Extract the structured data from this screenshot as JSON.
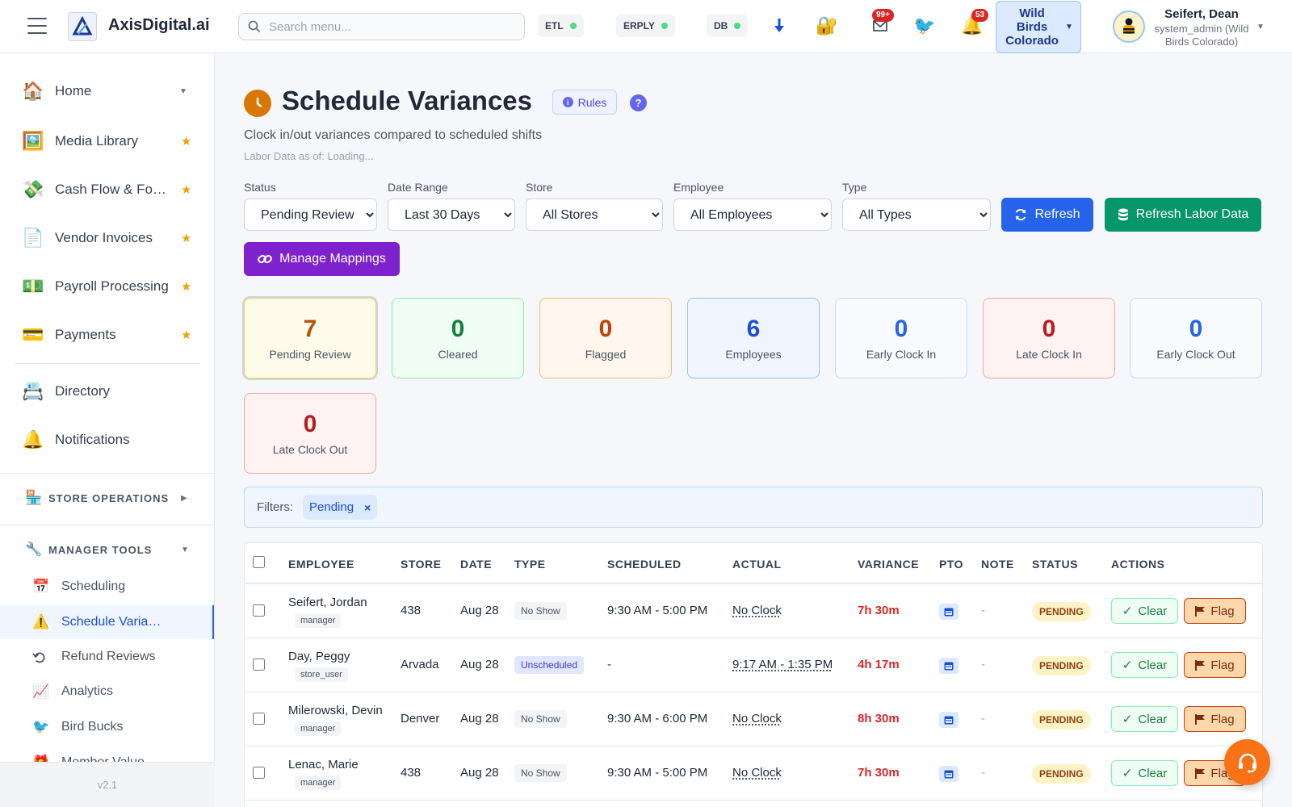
{
  "app": {
    "brand": "AxisDigital.ai",
    "version": "v2.1"
  },
  "header": {
    "search_placeholder": "Search menu...",
    "status_pills": [
      {
        "label": "ETL",
        "status": "online"
      },
      {
        "label": "ERPLY",
        "status": "online"
      },
      {
        "label": "DB",
        "status": "online"
      }
    ],
    "icons": [
      "download-icon",
      "lock-key-icon",
      "mail-icon",
      "bird-icon",
      "bell-icon"
    ],
    "mail_badge": "99+",
    "bell_badge": "53",
    "store_selector": "Wild Birds Colorado",
    "user": {
      "name": "Seifert, Dean",
      "role": "system_admin (Wild Birds Colorado)"
    }
  },
  "sidebar": {
    "items": [
      {
        "label": "Home",
        "icon": "home-icon",
        "caret": true
      },
      {
        "label": "Media Library",
        "icon": "image-icon",
        "star": true
      },
      {
        "label": "Cash Flow & Forecasting",
        "icon": "money-icon",
        "star": true
      },
      {
        "label": "Vendor Invoices",
        "icon": "document-icon",
        "star": true
      },
      {
        "label": "Payroll Processing",
        "icon": "dollar-bill-icon",
        "star": true
      },
      {
        "label": "Payments",
        "icon": "credit-card-icon",
        "star": true
      },
      {
        "label": "Directory",
        "icon": "card-index-icon"
      },
      {
        "label": "Notifications",
        "icon": "bell-icon"
      }
    ],
    "sections": [
      {
        "label": "STORE OPERATIONS",
        "icon": "store-icon",
        "expanded": false
      },
      {
        "label": "MANAGER TOOLS",
        "icon": "wrench-icon",
        "expanded": true
      }
    ],
    "manager_tools": [
      {
        "label": "Scheduling",
        "icon": "calendar-icon"
      },
      {
        "label": "Schedule Variances",
        "icon": "warning-icon",
        "active": true
      },
      {
        "label": "Refund Reviews",
        "icon": "undo-icon"
      },
      {
        "label": "Analytics",
        "icon": "chart-icon"
      },
      {
        "label": "Bird Bucks",
        "icon": "bird-icon"
      },
      {
        "label": "Member Value",
        "icon": "gift-icon"
      }
    ]
  },
  "page": {
    "title": "Schedule Variances",
    "rules_label": "Rules",
    "help_label": "?",
    "subtitle": "Clock in/out variances compared to scheduled shifts",
    "as_of": "Labor Data as of: Loading..."
  },
  "filters": {
    "status": {
      "label": "Status",
      "value": "Pending Review"
    },
    "date_range": {
      "label": "Date Range",
      "value": "Last 30 Days"
    },
    "store": {
      "label": "Store",
      "value": "All Stores"
    },
    "employee": {
      "label": "Employee",
      "value": "All Employees"
    },
    "type": {
      "label": "Type",
      "value": "All Types"
    },
    "refresh_label": "Refresh",
    "refresh_labor_label": "Refresh Labor Data",
    "manage_mappings_label": "Manage Mappings"
  },
  "stats": [
    {
      "value": "7",
      "label": "Pending Review",
      "color": "#b45309"
    },
    {
      "value": "0",
      "label": "Cleared",
      "color": "#15803d"
    },
    {
      "value": "0",
      "label": "Flagged",
      "color": "#c2410c"
    },
    {
      "value": "6",
      "label": "Employees",
      "color": "#1d4ed8"
    },
    {
      "value": "0",
      "label": "Early Clock In",
      "color": "#1d4ed8"
    },
    {
      "value": "0",
      "label": "Late Clock In",
      "color": "#b91c1c"
    },
    {
      "value": "0",
      "label": "Early Clock Out",
      "color": "#1d4ed8"
    },
    {
      "value": "0",
      "label": "Late Clock Out",
      "color": "#b91c1c"
    }
  ],
  "active_filters": {
    "label": "Filters:",
    "chips": [
      {
        "label": "Pending",
        "remove": "×"
      }
    ]
  },
  "table": {
    "columns": [
      "EMPLOYEE",
      "STORE",
      "DATE",
      "TYPE",
      "SCHEDULED",
      "ACTUAL",
      "VARIANCE",
      "PTO",
      "NOTE",
      "STATUS",
      "ACTIONS"
    ],
    "rows": [
      {
        "employee": "Seifert, Jordan",
        "role": "manager",
        "store": "438",
        "date": "Aug 28",
        "type": "No Show",
        "scheduled": "9:30 AM - 5:00 PM",
        "actual": "No Clock",
        "variance": "7h 30m",
        "note": "-",
        "status": "PENDING",
        "clear": "Clear",
        "flag": "Flag"
      },
      {
        "employee": "Day, Peggy",
        "role": "store_user",
        "store": "Arvada",
        "date": "Aug 28",
        "type": "Unscheduled",
        "scheduled": "-",
        "actual": "9:17 AM - 1:35 PM",
        "variance": "4h 17m",
        "note": "-",
        "status": "PENDING",
        "clear": "Clear",
        "flag": "Flag"
      },
      {
        "employee": "Milerowski, Devin",
        "role": "manager",
        "store": "Denver",
        "date": "Aug 28",
        "type": "No Show",
        "scheduled": "9:30 AM - 6:00 PM",
        "actual": "No Clock",
        "variance": "8h 30m",
        "note": "-",
        "status": "PENDING",
        "clear": "Clear",
        "flag": "Flag"
      },
      {
        "employee": "Lenac, Marie",
        "role": "manager",
        "store": "438",
        "date": "Aug 28",
        "type": "No Show",
        "scheduled": "9:30 AM - 5:00 PM",
        "actual": "No Clock",
        "variance": "7h 30m",
        "note": "-",
        "status": "PENDING",
        "clear": "Clear",
        "flag": "Flag"
      }
    ]
  }
}
